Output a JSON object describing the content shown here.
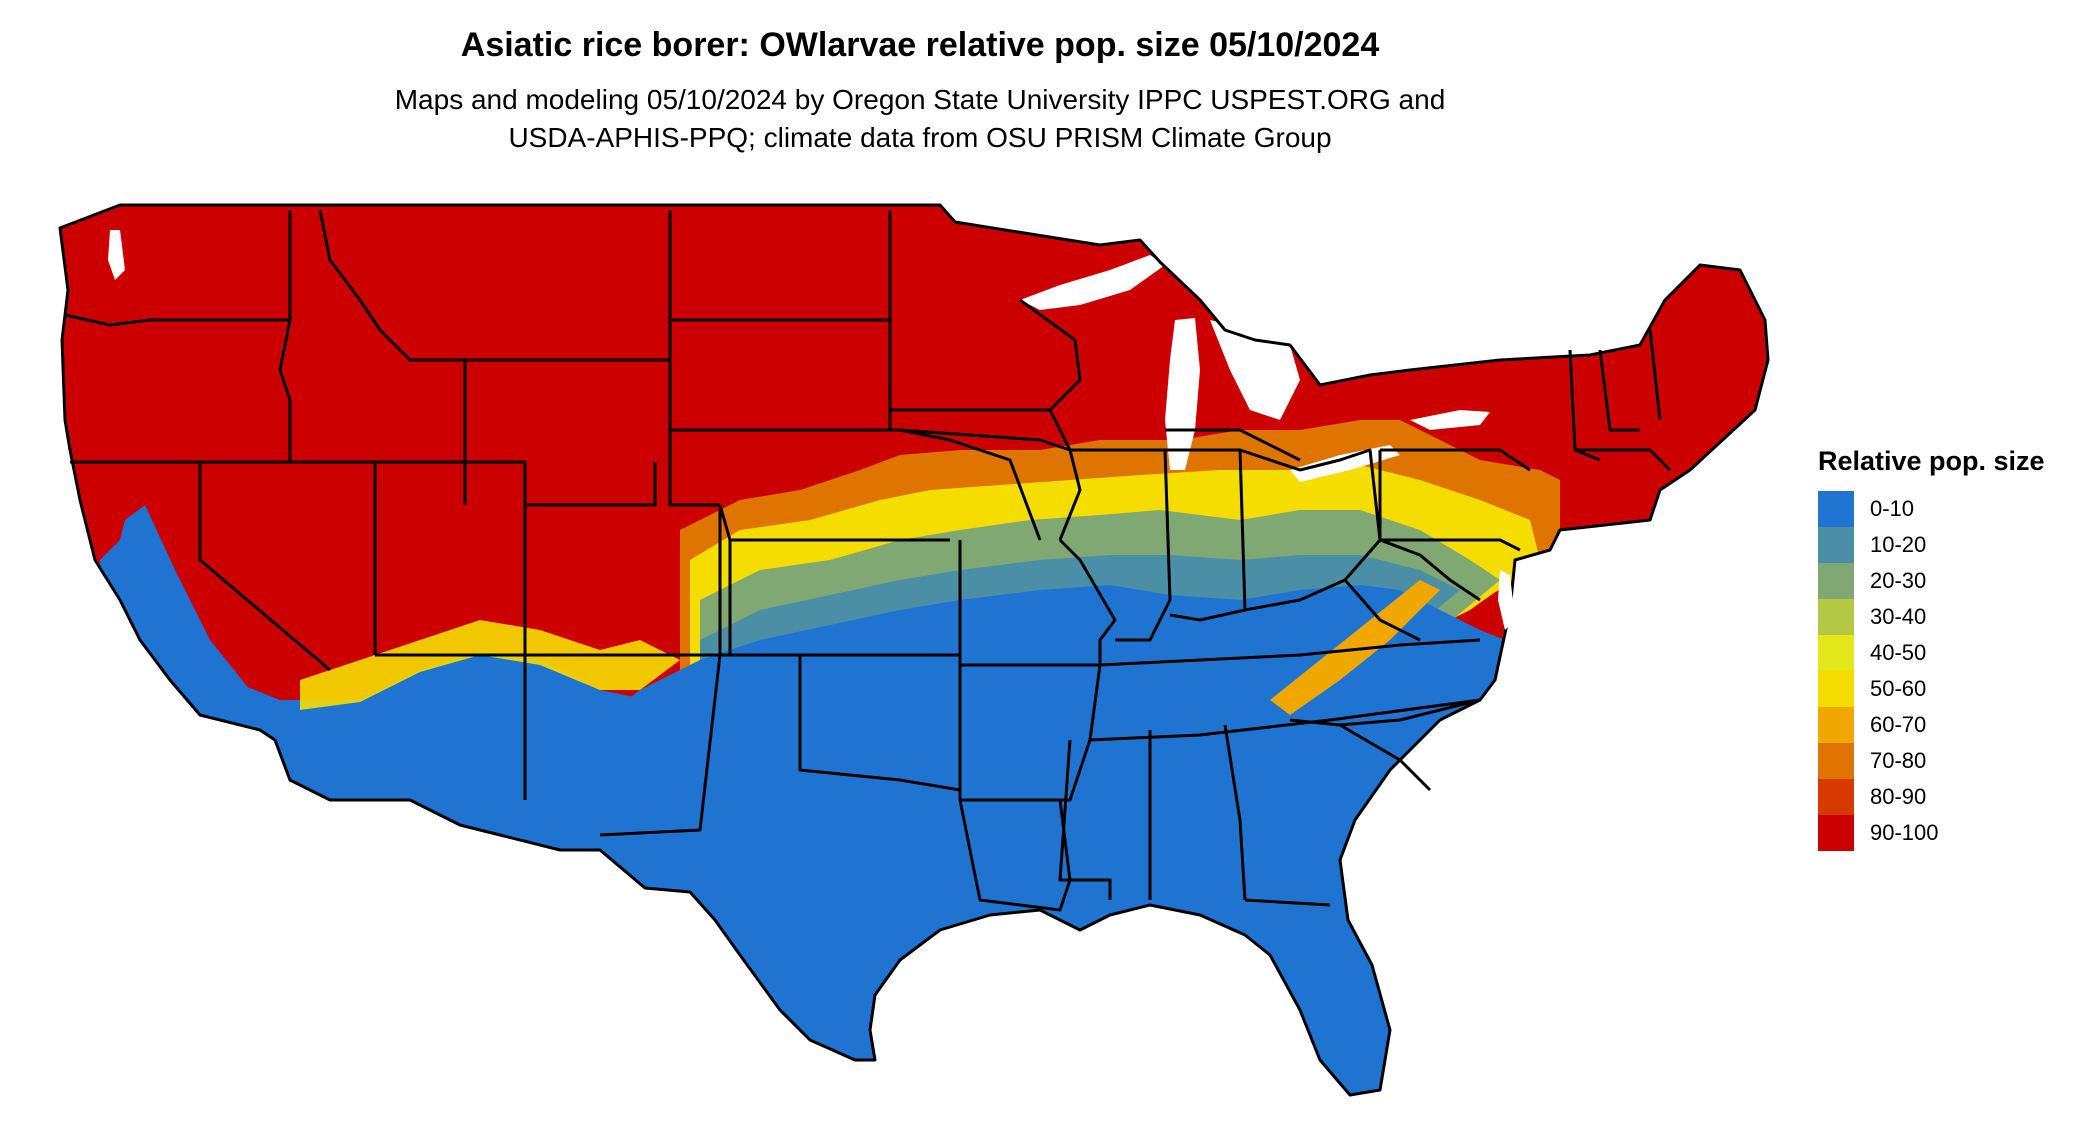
{
  "title": "Asiatic rice borer: OWlarvae relative pop. size 05/10/2024",
  "subtitle_line1": "Maps and modeling 05/10/2024 by Oregon State University IPPC USPEST.ORG and",
  "subtitle_line2": "USDA-APHIS-PPQ; climate data from OSU PRISM Climate Group",
  "legend": {
    "title": "Relative pop. size",
    "items": [
      {
        "label": "0-10",
        "color": "#1f74d1"
      },
      {
        "label": "10-20",
        "color": "#4a8fa6"
      },
      {
        "label": "20-30",
        "color": "#7fa872"
      },
      {
        "label": "30-40",
        "color": "#b3c943"
      },
      {
        "label": "40-50",
        "color": "#e2e81a"
      },
      {
        "label": "50-60",
        "color": "#f5dd00"
      },
      {
        "label": "60-70",
        "color": "#f0a800"
      },
      {
        "label": "70-80",
        "color": "#e07400"
      },
      {
        "label": "80-90",
        "color": "#d63a00"
      },
      {
        "label": "90-100",
        "color": "#cc0000"
      }
    ]
  },
  "colors": {
    "cold_north": "#cc0000",
    "warm_south": "#1f74d1",
    "state_border": "#000000"
  }
}
